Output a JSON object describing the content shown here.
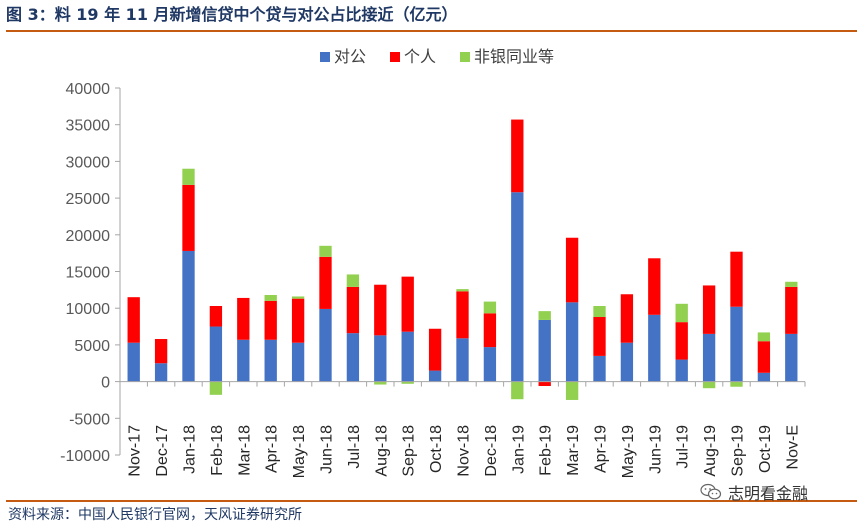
{
  "title": "图 3：料 19 年 11 月新增信贷中个贷与对公占比接近（亿元）",
  "source": "资料来源：中国人民银行官网，天风证券研究所",
  "watermark": "志明看金融",
  "colors": {
    "accent_rule": "#c55a11",
    "title": "#1f3864"
  },
  "chart_data": {
    "type": "bar",
    "stacked": true,
    "categories": [
      "Nov-17",
      "Dec-17",
      "Jan-18",
      "Feb-18",
      "Mar-18",
      "Apr-18",
      "May-18",
      "Jun-18",
      "Jul-18",
      "Aug-18",
      "Sep-18",
      "Oct-18",
      "Nov-18",
      "Dec-18",
      "Jan-19",
      "Feb-19",
      "Mar-19",
      "Apr-19",
      "May-19",
      "Jun-19",
      "Jul-19",
      "Aug-19",
      "Sep-19",
      "Oct-19",
      "Nov-E"
    ],
    "series": [
      {
        "name": "对公",
        "color": "#4472c4",
        "values": [
          5300,
          2500,
          17800,
          7500,
          5700,
          5700,
          5300,
          9900,
          6600,
          6300,
          6800,
          1500,
          5900,
          4700,
          25800,
          8400,
          10800,
          3500,
          5300,
          9100,
          3000,
          6500,
          10200,
          1200,
          6500
        ]
      },
      {
        "name": "个人",
        "color": "#ff0000",
        "values": [
          6200,
          3300,
          9000,
          2800,
          5700,
          5300,
          6000,
          7100,
          6300,
          6900,
          7500,
          5700,
          6400,
          4600,
          9900,
          -600,
          8800,
          5300,
          6600,
          7700,
          5100,
          6600,
          7500,
          4300,
          6400
        ]
      },
      {
        "name": "非银同业等",
        "color": "#92d050",
        "values": [
          0,
          0,
          2200,
          -1800,
          0,
          800,
          300,
          1500,
          1700,
          -400,
          -300,
          0,
          300,
          1600,
          -2400,
          1200,
          -2500,
          1500,
          0,
          0,
          2500,
          -900,
          -700,
          1200,
          700
        ]
      }
    ],
    "ylim": [
      -10000,
      40000
    ],
    "yticks": [
      -10000,
      -5000,
      0,
      5000,
      10000,
      15000,
      20000,
      25000,
      30000,
      35000,
      40000
    ],
    "grid": false,
    "legend_position": "top-center"
  }
}
